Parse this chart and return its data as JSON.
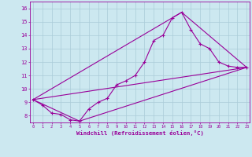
{
  "xlabel": "Windchill (Refroidissement éolien,°C)",
  "bg_color": "#cce8f0",
  "line_color": "#990099",
  "grid_color": "#aaccd8",
  "x_min": 0,
  "x_max": 23,
  "y_min": 7.5,
  "y_max": 16.5,
  "y_ticks": [
    8,
    9,
    10,
    11,
    12,
    13,
    14,
    15,
    16
  ],
  "x_ticks": [
    0,
    1,
    2,
    3,
    4,
    5,
    6,
    7,
    8,
    9,
    10,
    11,
    12,
    13,
    14,
    15,
    16,
    17,
    18,
    19,
    20,
    21,
    22,
    23
  ],
  "series_main_x": [
    0,
    1,
    2,
    3,
    4,
    5,
    6,
    7,
    8,
    9,
    10,
    11,
    12,
    13,
    14,
    15,
    16,
    17,
    18,
    19,
    20,
    21,
    22,
    23
  ],
  "series_main_y": [
    9.2,
    8.8,
    8.2,
    8.1,
    7.7,
    7.6,
    8.5,
    9.0,
    9.3,
    10.3,
    10.6,
    11.0,
    12.0,
    13.6,
    14.0,
    15.3,
    15.7,
    14.4,
    13.35,
    13.0,
    12.0,
    11.7,
    11.6,
    11.6
  ],
  "line1_x": [
    0,
    23
  ],
  "line1_y": [
    9.2,
    11.6
  ],
  "line2_x": [
    0,
    16,
    23
  ],
  "line2_y": [
    9.2,
    15.7,
    11.6
  ],
  "line3_x": [
    0,
    5,
    23
  ],
  "line3_y": [
    9.2,
    7.6,
    11.6
  ]
}
